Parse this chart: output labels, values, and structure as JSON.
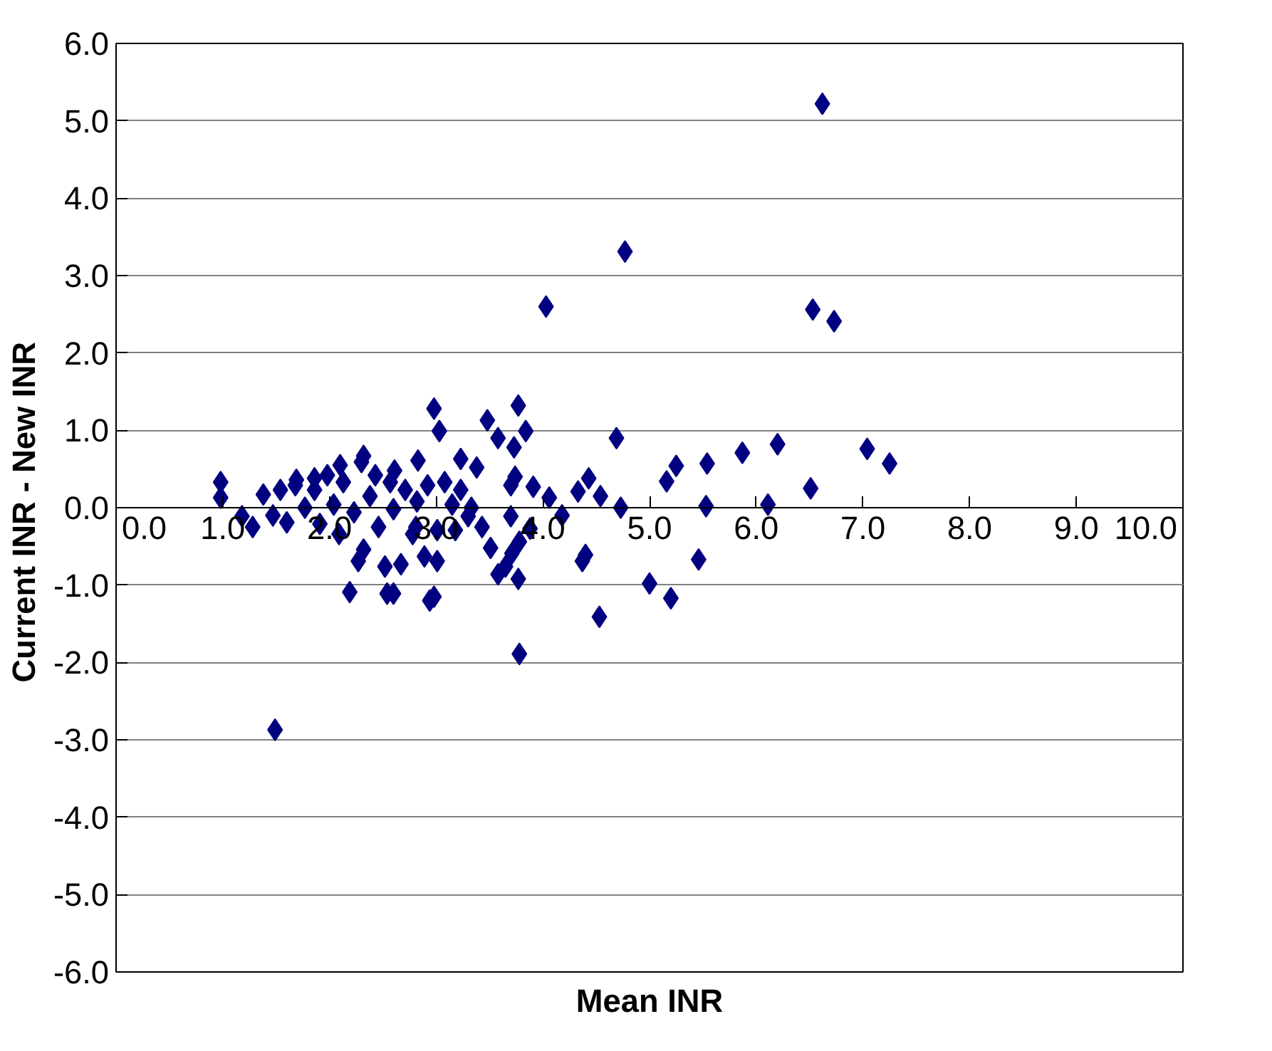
{
  "chart_data": {
    "type": "scatter",
    "xlabel": "Mean INR",
    "ylabel": "Current  INR - New INR",
    "marker": "diamond",
    "grid": "y",
    "xlim": [
      0,
      10
    ],
    "ylim": [
      -6,
      6
    ],
    "xticks": [
      {
        "value": 0,
        "label": "0.0"
      },
      {
        "value": 1,
        "label": "1.0"
      },
      {
        "value": 2,
        "label": "2.0"
      },
      {
        "value": 3,
        "label": "3.0"
      },
      {
        "value": 4,
        "label": "4.0"
      },
      {
        "value": 5,
        "label": "5.0"
      },
      {
        "value": 6,
        "label": "6.0"
      },
      {
        "value": 7,
        "label": "7.0"
      },
      {
        "value": 8,
        "label": "8.0"
      },
      {
        "value": 9,
        "label": "9.0"
      },
      {
        "value": 10,
        "label": "10.0"
      }
    ],
    "yticks": [
      {
        "value": -6,
        "label": "-6.0"
      },
      {
        "value": -5,
        "label": "-5.0"
      },
      {
        "value": -4,
        "label": "-4.0"
      },
      {
        "value": -3,
        "label": "-3.0"
      },
      {
        "value": -2,
        "label": "-2.0"
      },
      {
        "value": -1,
        "label": "-1.0"
      },
      {
        "value": 0,
        "label": "0.0"
      },
      {
        "value": 1,
        "label": "1.0"
      },
      {
        "value": 2,
        "label": "2.0"
      },
      {
        "value": 3,
        "label": "3.0"
      },
      {
        "value": 4,
        "label": "4.0"
      },
      {
        "value": 5,
        "label": "5.0"
      },
      {
        "value": 6,
        "label": "6.0"
      }
    ],
    "series": [
      {
        "color": "#000080",
        "x": [
          6.62,
          4.77,
          4.03,
          6.53,
          6.73,
          4.69,
          7.04,
          7.25,
          6.2,
          5.87,
          5.54,
          5.25,
          5.16,
          6.51,
          6.11,
          5.53,
          4.73,
          4.54,
          4.43,
          4.33,
          4.06,
          4.18,
          4.4,
          4.37,
          5.46,
          5.0,
          5.2,
          4.53,
          3.78,
          1.49,
          2.98,
          3.03,
          3.48,
          3.77,
          3.84,
          3.58,
          3.73,
          2.83,
          3.23,
          3.38,
          3.74,
          3.7,
          3.91,
          2.61,
          2.92,
          3.08,
          3.23,
          3.15,
          3.33,
          3.7,
          3.88,
          3.43,
          3.18,
          3.01,
          2.81,
          3.3,
          3.51,
          3.78,
          3.71,
          3.65,
          3.58,
          3.77,
          3.01,
          2.98,
          2.94,
          2.6,
          0.98,
          0.98,
          1.18,
          1.28,
          1.38,
          1.47,
          1.54,
          1.6,
          1.68,
          1.77,
          1.86,
          1.91,
          1.98,
          2.04,
          2.09,
          2.13,
          2.19,
          2.23,
          2.3,
          2.32,
          2.38,
          2.43,
          2.46,
          2.52,
          2.54,
          2.57,
          2.6,
          2.67,
          2.71,
          2.78,
          2.82,
          2.89,
          2.27,
          2.32,
          2.1,
          1.86,
          1.69
        ],
        "values": [
          5.22,
          3.31,
          2.6,
          2.56,
          2.41,
          0.9,
          0.76,
          0.57,
          0.82,
          0.71,
          0.57,
          0.54,
          0.34,
          0.25,
          0.04,
          0.02,
          0.0,
          0.15,
          0.38,
          0.21,
          0.13,
          -0.1,
          -0.61,
          -0.69,
          -0.67,
          -0.98,
          -1.17,
          -1.41,
          -1.89,
          -2.87,
          1.28,
          0.99,
          1.13,
          1.32,
          0.99,
          0.9,
          0.78,
          0.61,
          0.63,
          0.52,
          0.4,
          0.29,
          0.27,
          0.48,
          0.29,
          0.33,
          0.23,
          0.04,
          0.0,
          -0.11,
          -0.27,
          -0.25,
          -0.29,
          -0.29,
          -0.25,
          -0.11,
          -0.52,
          -0.44,
          -0.59,
          -0.76,
          -0.86,
          -0.92,
          -0.69,
          -1.15,
          -1.2,
          -1.11,
          0.33,
          0.13,
          -0.11,
          -0.25,
          0.17,
          -0.1,
          0.23,
          -0.19,
          0.29,
          0.0,
          0.23,
          -0.21,
          0.42,
          0.04,
          -0.34,
          0.33,
          -1.09,
          -0.06,
          0.59,
          -0.54,
          0.15,
          0.42,
          -0.25,
          -0.76,
          -1.11,
          0.33,
          -0.02,
          -0.73,
          0.23,
          -0.34,
          0.08,
          -0.63,
          -0.69,
          0.67,
          0.55,
          0.38,
          0.36
        ]
      }
    ]
  }
}
